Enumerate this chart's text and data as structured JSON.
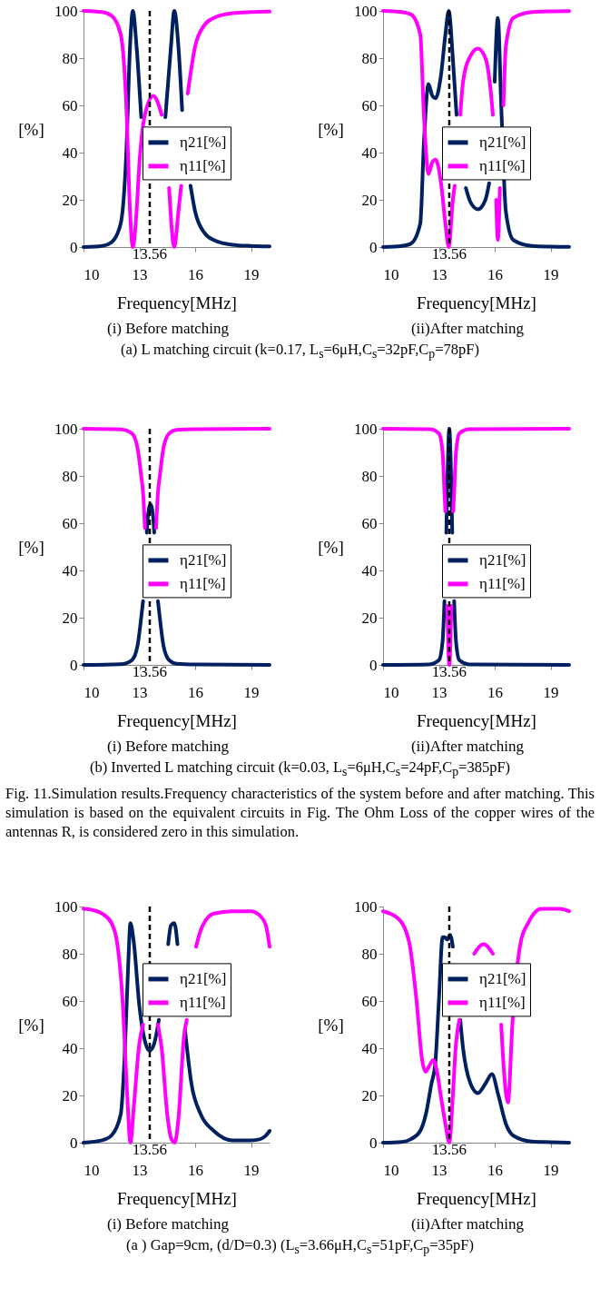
{
  "chart_data": [
    {
      "type": "line",
      "xlabel": "Frequency[MHz]",
      "ylabel": "[%]",
      "xlim": [
        10,
        20
      ],
      "xticks": [
        10,
        13,
        16,
        19
      ],
      "ylim": [
        0,
        100
      ],
      "yticks": [
        0,
        20,
        40,
        60,
        80,
        100
      ],
      "legend": "right",
      "ref_lines": [
        {
          "axis": "x",
          "value": 13.56,
          "label": "13.56",
          "line_style": "dashed"
        }
      ],
      "annotations": [
        "(i) Before matching",
        "(a)    L matching circuit (k=0.17, L$_{s}$=6μH,C$_{s}$=32pF,C$_{p}$=78pF)"
      ],
      "series": [
        {
          "name": "η21[%]",
          "color": "#002060",
          "x": [
            10,
            11,
            11.5,
            12,
            12.3,
            12.5,
            12.65,
            12.85,
            13.1,
            13.4,
            13.75,
            14.1,
            14.4,
            14.7,
            14.88,
            15.1,
            15.3,
            15.45,
            15.75,
            16,
            16.5,
            17,
            18,
            19,
            20
          ],
          "values": [
            0,
            0.5,
            2,
            10,
            40,
            85,
            100,
            85,
            55,
            null,
            null,
            null,
            55,
            85,
            100,
            85,
            58,
            null,
            26,
            15,
            6,
            3,
            1,
            0.5,
            0.3
          ]
        },
        {
          "name": "η11[%]",
          "color": "#ff00ff",
          "x": [
            10,
            11,
            11.5,
            12,
            12.3,
            12.5,
            12.65,
            12.85,
            13.0,
            13.3,
            13.75,
            14.2,
            14.4,
            14.6,
            14.88,
            15.1,
            15.25,
            15.4,
            15.6,
            16,
            16.5,
            17,
            18,
            19,
            20
          ],
          "values": [
            100,
            99.5,
            98,
            90,
            60,
            15,
            0,
            15,
            35,
            56,
            64,
            56,
            null,
            25,
            0,
            15,
            26,
            null,
            65,
            85,
            94,
            97,
            99,
            99.5,
            99.7
          ]
        }
      ]
    },
    {
      "type": "line",
      "xlabel": "Frequency[MHz]",
      "ylabel": "[%]",
      "xlim": [
        10,
        20
      ],
      "xticks": [
        10,
        13,
        16,
        19
      ],
      "ylim": [
        0,
        100
      ],
      "yticks": [
        0,
        20,
        40,
        60,
        80,
        100
      ],
      "legend": "right",
      "ref_lines": [
        {
          "axis": "x",
          "value": 13.56,
          "label": "13.56",
          "line_style": "dashed"
        }
      ],
      "annotations": [
        "(ii)After matching"
      ],
      "series": [
        {
          "name": "η21[%]",
          "color": "#002060",
          "x": [
            10,
            11,
            11.5,
            12,
            12.2,
            12.44,
            12.65,
            12.82,
            13.1,
            13.35,
            13.53,
            13.75,
            13.95,
            14.1,
            14.45,
            14.7,
            15.1,
            15.5,
            15.7,
            15.85,
            16,
            16.17,
            16.35,
            16.6,
            17,
            18,
            19,
            20
          ],
          "values": [
            0,
            0.5,
            1.5,
            10,
            45,
            69,
            64,
            63,
            72,
            90,
            100,
            80,
            56,
            null,
            25,
            19,
            16,
            20,
            27,
            null,
            70,
            97,
            60,
            15,
            3,
            0.5,
            0.2,
            0.1
          ]
        },
        {
          "name": "η11[%]",
          "color": "#ff00ff",
          "x": [
            10,
            11,
            11.5,
            12,
            12.2,
            12.44,
            12.65,
            12.82,
            13.1,
            13.35,
            13.53,
            13.75,
            13.85,
            14.0,
            14.15,
            14.3,
            14.7,
            15.1,
            15.5,
            15.8,
            15.9,
            16.0,
            16.08,
            16.17,
            16.28,
            16.37,
            16.47,
            16.6,
            17,
            18,
            19,
            20
          ],
          "values": [
            100,
            99.5,
            98.5,
            90,
            55,
            31,
            36,
            37,
            28,
            10,
            0,
            20,
            26,
            null,
            56,
            70,
            81,
            84,
            80,
            65,
            56,
            null,
            20,
            3,
            25,
            null,
            60,
            85,
            97,
            99.5,
            99.8,
            99.9
          ]
        }
      ]
    },
    {
      "type": "line",
      "xlabel": "Frequency[MHz]",
      "ylabel": "[%]",
      "xlim": [
        10,
        20
      ],
      "xticks": [
        10,
        13,
        16,
        19
      ],
      "ylim": [
        0,
        100
      ],
      "yticks": [
        0,
        20,
        40,
        60,
        80,
        100
      ],
      "legend": "right",
      "ref_lines": [
        {
          "axis": "x",
          "value": 13.56,
          "label": "13.56",
          "line_style": "dashed"
        }
      ],
      "annotations": [
        "(i)  Before matching",
        "(b)    Inverted L matching circuit (k=0.03, L$_{s}$=6μH,C$_{s}$=24pF,C$_{p}$=385pF)"
      ],
      "series": [
        {
          "name": "η21[%]",
          "color": "#002060",
          "x": [
            10,
            12,
            12.6,
            12.9,
            13.1,
            13.2,
            13.3,
            13.4,
            13.45,
            13.6,
            13.75,
            13.8,
            13.9,
            14.0,
            14.1,
            14.3,
            14.6,
            15,
            16,
            20
          ],
          "values": [
            0,
            0.3,
            2,
            8,
            20,
            27,
            null,
            56,
            62,
            68,
            62,
            56,
            null,
            27,
            20,
            8,
            2,
            0.5,
            0.2,
            0
          ]
        },
        {
          "name": "η11[%]",
          "color": "#ff00ff",
          "x": [
            10,
            12,
            12.6,
            12.9,
            13.1,
            13.2,
            13.3,
            13.4,
            13.45,
            13.6,
            13.75,
            13.8,
            13.9,
            14.0,
            14.1,
            14.3,
            14.6,
            15,
            16,
            20
          ],
          "values": [
            100,
            99.7,
            98,
            92,
            80,
            73,
            58,
            null,
            null,
            null,
            null,
            null,
            58,
            73,
            80,
            92,
            98,
            99.5,
            99.8,
            100
          ]
        }
      ]
    },
    {
      "type": "line",
      "xlabel": "Frequency[MHz]",
      "ylabel": "[%]",
      "xlim": [
        10,
        20
      ],
      "xticks": [
        10,
        13,
        16,
        19
      ],
      "ylim": [
        0,
        100
      ],
      "yticks": [
        0,
        20,
        40,
        60,
        80,
        100
      ],
      "legend": "right",
      "ref_lines": [
        {
          "axis": "x",
          "value": 13.56,
          "label": "13.56",
          "line_style": "dashed"
        }
      ],
      "annotations": [
        "(ii)After matching",
        "Fig. 11.Simulation results.Frequency characteristics of the system before and after matching. This simulation is based on the equivalent circuits in Fig. The Ohm Loss of the copper wires of the antennas R, is considered zero in this simulation."
      ],
      "series": [
        {
          "name": "η21[%]",
          "color": "#002060",
          "x": [
            10,
            12.5,
            13,
            13.2,
            13.3,
            13.35,
            13.4,
            13.45,
            13.56,
            13.67,
            13.72,
            13.77,
            13.82,
            13.92,
            14.1,
            14.6,
            20
          ],
          "values": [
            0,
            0.2,
            2,
            10,
            27,
            null,
            56,
            75,
            100,
            75,
            56,
            null,
            27,
            10,
            2,
            0.2,
            0
          ]
        },
        {
          "name": "η11[%]",
          "color": "#ff00ff",
          "x": [
            10,
            12.5,
            13,
            13.2,
            13.3,
            13.35,
            13.4,
            13.45,
            13.56,
            13.67,
            13.72,
            13.77,
            13.82,
            13.92,
            14.1,
            14.6,
            20
          ],
          "values": [
            100,
            99.8,
            98,
            90,
            73,
            65,
            null,
            25,
            0,
            25,
            null,
            65,
            73,
            90,
            98,
            99.8,
            100
          ]
        }
      ]
    },
    {
      "type": "line",
      "xlabel": "Frequency[MHz]",
      "ylabel": "[%]",
      "xlim": [
        10,
        20
      ],
      "xticks": [
        10,
        13,
        16,
        19
      ],
      "ylim": [
        0,
        100
      ],
      "yticks": [
        0,
        20,
        40,
        60,
        80,
        100
      ],
      "legend": "top right",
      "ref_lines": [
        {
          "axis": "x",
          "value": 13.56,
          "label": "13.56",
          "line_style": "dashed"
        }
      ],
      "annotations": [
        "(i)  Before matching",
        "(a ) Gap=9cm, (d/D=0.3) (L$_{s}$=3.66μH,C$_{s}$=51pF,C$_{p}$=35pF)"
      ],
      "series": [
        {
          "name": "η21[%]",
          "color": "#002060",
          "x": [
            10,
            11,
            11.5,
            12,
            12.2,
            12.4,
            12.52,
            12.7,
            13,
            13.3,
            13.55,
            13.8,
            14.05,
            14.25,
            14.55,
            14.7,
            14.88,
            15.05,
            15.2,
            15.45,
            15.8,
            16.3,
            17,
            18,
            19,
            19.5,
            19.8,
            20
          ],
          "values": [
            0,
            1,
            3,
            12,
            35,
            75,
            93,
            85,
            58,
            43,
            39,
            42,
            52,
            null,
            84,
            92,
            93,
            84,
            null,
            48,
            25,
            12,
            5,
            1,
            1,
            1.5,
            3,
            5
          ]
        },
        {
          "name": "η11[%]",
          "color": "#ff00ff",
          "x": [
            10,
            10.5,
            11,
            11.5,
            11.8,
            12.1,
            12.35,
            12.52,
            12.7,
            13,
            13.2,
            13.6,
            14.0,
            14.2,
            14.5,
            14.7,
            14.9,
            15.1,
            15.4,
            15.55,
            15.8,
            16.05,
            16.3,
            17,
            18,
            19,
            19.5,
            19.8,
            20
          ],
          "values": [
            99,
            98.5,
            97,
            93,
            85,
            60,
            20,
            0,
            15,
            42,
            50,
            null,
            50,
            40,
            12,
            2,
            0,
            10,
            45,
            52,
            null,
            83,
            90,
            97,
            98,
            98,
            96,
            92,
            83
          ]
        }
      ]
    },
    {
      "type": "line",
      "xlabel": "Frequency[MHz]",
      "ylabel": "[%]",
      "xlim": [
        10,
        20
      ],
      "xticks": [
        10,
        13,
        16,
        19
      ],
      "ylim": [
        0,
        100
      ],
      "yticks": [
        0,
        20,
        40,
        60,
        80,
        100
      ],
      "legend": "top right",
      "ref_lines": [
        {
          "axis": "x",
          "value": 13.56,
          "label": "13.56",
          "line_style": "dashed"
        }
      ],
      "annotations": [
        "(ii)After matching"
      ],
      "series": [
        {
          "name": "η21[%]",
          "color": "#002060",
          "x": [
            10,
            11,
            11.5,
            12,
            12.3,
            12.6,
            12.8,
            13,
            13.2,
            13.3,
            13.45,
            13.6,
            13.75,
            13.9,
            14.15,
            14.3,
            14.7,
            15.1,
            15.5,
            15.85,
            16.2,
            16.6,
            17,
            18,
            19,
            20
          ],
          "values": [
            0,
            0.3,
            1.5,
            5,
            12,
            25,
            33,
            60,
            87,
            87,
            86,
            88,
            83,
            null,
            52,
            40,
            25,
            21,
            25,
            29,
            20,
            8,
            3,
            0.5,
            0.2,
            0
          ]
        },
        {
          "name": "η11[%]",
          "color": "#ff00ff",
          "x": [
            10,
            10.8,
            11.4,
            11.8,
            12.1,
            12.28,
            12.45,
            12.7,
            12.9,
            13.1,
            13.35,
            13.56,
            13.75,
            13.9,
            14.1,
            14.4,
            14.9,
            15.4,
            15.9,
            16.1,
            16.35,
            16.5,
            16.71,
            16.95,
            17.4,
            17.8,
            18.5,
            19.5,
            20
          ],
          "values": [
            98,
            95,
            85,
            60,
            35,
            30,
            32,
            35,
            30,
            20,
            8,
            0,
            20,
            40,
            52,
            null,
            80,
            84,
            80,
            null,
            50,
            30,
            17,
            50,
            85,
            93,
            99,
            99,
            98
          ]
        }
      ]
    }
  ]
}
